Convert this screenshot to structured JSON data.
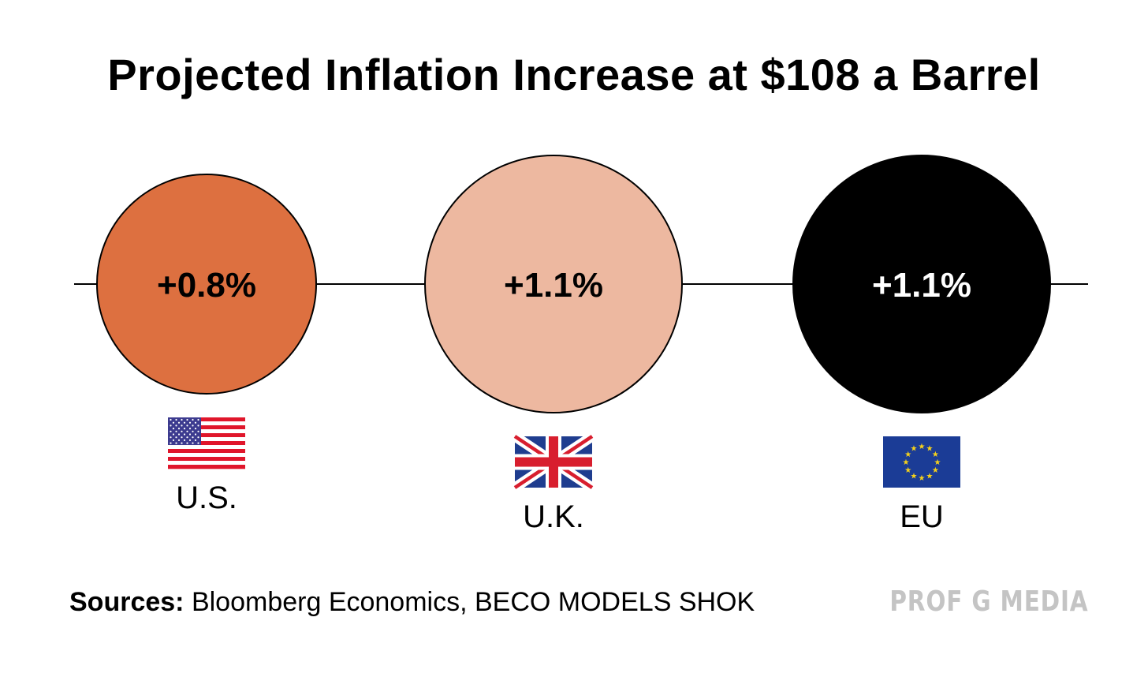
{
  "chart_data": {
    "type": "bubble",
    "title": "Projected Inflation Increase at $108 a Barrel",
    "unit": "%",
    "series": [
      {
        "name": "U.S.",
        "value": 0.8,
        "label": "+0.8%",
        "color": "#dd7040",
        "text_color": "#000000",
        "flag": "us-flag-icon"
      },
      {
        "name": "U.K.",
        "value": 1.1,
        "label": "+1.1%",
        "color": "#edb8a0",
        "text_color": "#000000",
        "flag": "uk-flag-icon"
      },
      {
        "name": "EU",
        "value": 1.1,
        "label": "+1.1%",
        "color": "#000000",
        "text_color": "#ffffff",
        "flag": "eu-flag-icon"
      }
    ]
  },
  "footer": {
    "sources_label": "Sources:",
    "sources_text": " Bloomberg Economics, BECO MODELS SHOK",
    "brand": "PROF G MEDIA"
  }
}
